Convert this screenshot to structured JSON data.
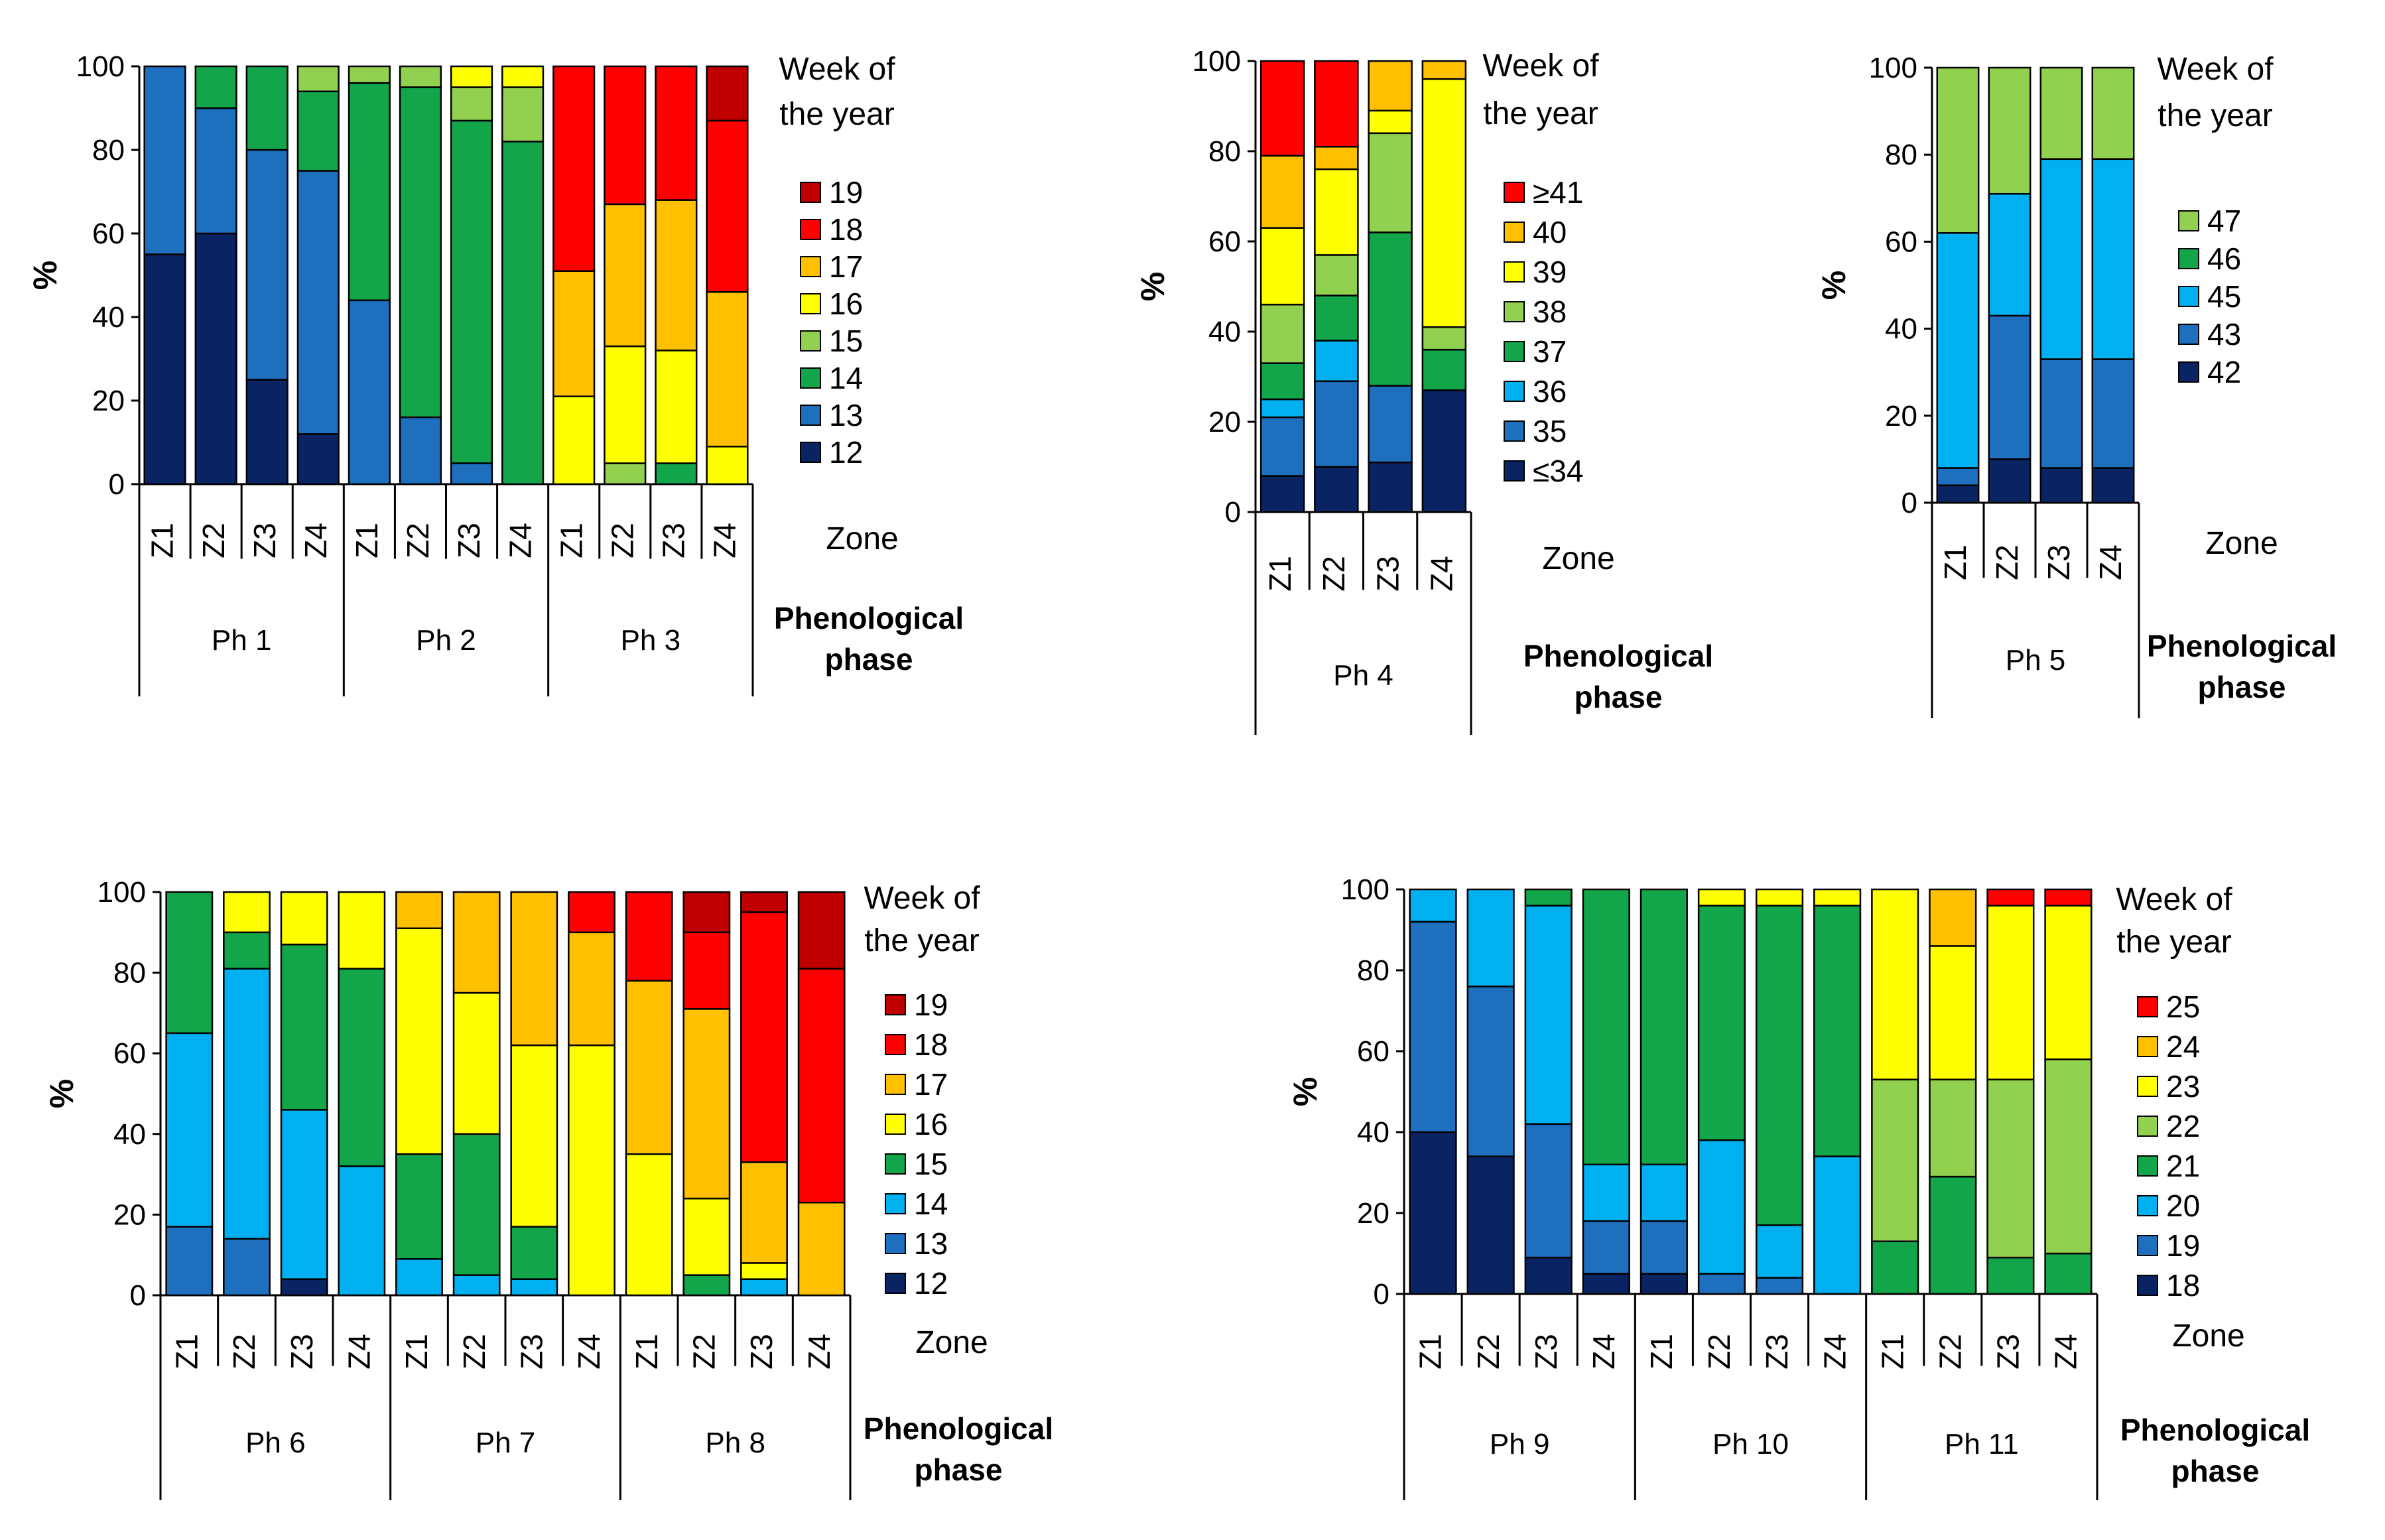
{
  "chart_data": [
    {
      "type": "bar",
      "stacked": true,
      "title": "",
      "ylabel": "%",
      "ylim": [
        0,
        100
      ],
      "yticks": [
        "0",
        "20",
        "40",
        "60",
        "80",
        "100"
      ],
      "xlabel": "Zone",
      "group_axis_label": "Phenological phase",
      "legend_title": "Week of the year",
      "groups": [
        "Ph 1",
        "Ph 2",
        "Ph 3"
      ],
      "categories": [
        "Z1",
        "Z2",
        "Z3",
        "Z4",
        "Z1",
        "Z2",
        "Z3",
        "Z4",
        "Z1",
        "Z2",
        "Z3",
        "Z4"
      ],
      "series": [
        {
          "name": "12",
          "color": "#0a2463",
          "values": [
            55,
            60,
            25,
            12,
            0,
            0,
            0,
            0,
            0,
            0,
            0,
            0
          ]
        },
        {
          "name": "13",
          "color": "#1f6fbf",
          "values": [
            45,
            30,
            55,
            63,
            44,
            16,
            5,
            0,
            0,
            0,
            0,
            0
          ]
        },
        {
          "name": "14",
          "color": "#12a54a",
          "values": [
            0,
            10,
            20,
            19,
            52,
            79,
            82,
            82,
            0,
            0,
            5,
            0
          ]
        },
        {
          "name": "15",
          "color": "#92d050",
          "values": [
            0,
            0,
            0,
            6,
            4,
            5,
            8,
            13,
            0,
            5,
            0,
            0
          ]
        },
        {
          "name": "16",
          "color": "#ffff00",
          "values": [
            0,
            0,
            0,
            0,
            0,
            0,
            5,
            5,
            21,
            28,
            27,
            9
          ]
        },
        {
          "name": "17",
          "color": "#ffc000",
          "values": [
            0,
            0,
            0,
            0,
            0,
            0,
            0,
            0,
            30,
            34,
            36,
            37
          ]
        },
        {
          "name": "18",
          "color": "#ff0000",
          "values": [
            0,
            0,
            0,
            0,
            0,
            0,
            0,
            0,
            49,
            33,
            32,
            41
          ]
        },
        {
          "name": "19",
          "color": "#c00000",
          "values": [
            0,
            0,
            0,
            0,
            0,
            0,
            0,
            0,
            0,
            0,
            0,
            13
          ]
        }
      ]
    },
    {
      "type": "bar",
      "stacked": true,
      "title": "",
      "ylabel": "%",
      "ylim": [
        0,
        100
      ],
      "yticks": [
        "0",
        "20",
        "40",
        "60",
        "80",
        "100"
      ],
      "xlabel": "Zone",
      "group_axis_label": "Phenological phase",
      "legend_title": "Week of the year",
      "groups": [
        "Ph 4"
      ],
      "categories": [
        "Z1",
        "Z2",
        "Z3",
        "Z4"
      ],
      "series": [
        {
          "name": "≤34",
          "color": "#0a2463",
          "values": [
            8,
            10,
            11,
            27
          ]
        },
        {
          "name": "35",
          "color": "#1f6fbf",
          "values": [
            13,
            19,
            17,
            0
          ]
        },
        {
          "name": "36",
          "color": "#00b0f0",
          "values": [
            4,
            9,
            0,
            0
          ]
        },
        {
          "name": "37",
          "color": "#12a54a",
          "values": [
            8,
            10,
            34,
            9
          ]
        },
        {
          "name": "38",
          "color": "#92d050",
          "values": [
            13,
            9,
            22,
            5
          ]
        },
        {
          "name": "39",
          "color": "#ffff00",
          "values": [
            17,
            19,
            5,
            55
          ]
        },
        {
          "name": "40",
          "color": "#ffc000",
          "values": [
            16,
            5,
            11,
            4
          ]
        },
        {
          "name": "≥41",
          "color": "#ff0000",
          "values": [
            21,
            19,
            0,
            0
          ]
        }
      ]
    },
    {
      "type": "bar",
      "stacked": true,
      "title": "",
      "ylabel": "%",
      "ylim": [
        0,
        100
      ],
      "yticks": [
        "0",
        "20",
        "40",
        "60",
        "80",
        "100"
      ],
      "xlabel": "Zone",
      "group_axis_label": "Phenological phase",
      "legend_title": "Week of the year",
      "groups": [
        "Ph 5"
      ],
      "categories": [
        "Z1",
        "Z2",
        "Z3",
        "Z4"
      ],
      "series": [
        {
          "name": "42",
          "color": "#0a2463",
          "values": [
            4,
            10,
            8,
            8
          ]
        },
        {
          "name": "43",
          "color": "#1f6fbf",
          "values": [
            4,
            33,
            25,
            25
          ]
        },
        {
          "name": "45",
          "color": "#00b0f0",
          "values": [
            54,
            28,
            46,
            46
          ]
        },
        {
          "name": "46",
          "color": "#12a54a",
          "values": [
            0,
            0,
            0,
            0
          ]
        },
        {
          "name": "47",
          "color": "#92d050",
          "values": [
            38,
            29,
            21,
            21
          ]
        }
      ]
    },
    {
      "type": "bar",
      "stacked": true,
      "title": "",
      "ylabel": "%",
      "ylim": [
        0,
        100
      ],
      "yticks": [
        "0",
        "20",
        "40",
        "60",
        "80",
        "100"
      ],
      "xlabel": "Zone",
      "group_axis_label": "Phenological phase",
      "legend_title": "Week of the year",
      "groups": [
        "Ph 6",
        "Ph 7",
        "Ph 8"
      ],
      "categories": [
        "Z1",
        "Z2",
        "Z3",
        "Z4",
        "Z1",
        "Z2",
        "Z3",
        "Z4",
        "Z1",
        "Z2",
        "Z3",
        "Z4"
      ],
      "series": [
        {
          "name": "12",
          "color": "#0a2463",
          "values": [
            0,
            0,
            4,
            0,
            0,
            0,
            0,
            0,
            0,
            0,
            0,
            0
          ]
        },
        {
          "name": "13",
          "color": "#1f6fbf",
          "values": [
            17,
            14,
            0,
            0,
            0,
            0,
            0,
            0,
            0,
            0,
            0,
            0
          ]
        },
        {
          "name": "14",
          "color": "#00b0f0",
          "values": [
            48,
            67,
            42,
            32,
            9,
            5,
            4,
            0,
            0,
            0,
            4,
            0
          ]
        },
        {
          "name": "15",
          "color": "#12a54a",
          "values": [
            35,
            9,
            41,
            49,
            26,
            35,
            13,
            0,
            0,
            5,
            0,
            0
          ]
        },
        {
          "name": "16",
          "color": "#ffff00",
          "values": [
            0,
            10,
            13,
            19,
            56,
            35,
            45,
            62,
            35,
            19,
            4,
            0
          ]
        },
        {
          "name": "17",
          "color": "#ffc000",
          "values": [
            0,
            0,
            0,
            0,
            9,
            25,
            38,
            28,
            43,
            47,
            25,
            23
          ]
        },
        {
          "name": "18",
          "color": "#ff0000",
          "values": [
            0,
            0,
            0,
            0,
            0,
            0,
            0,
            10,
            22,
            19,
            62,
            58
          ]
        },
        {
          "name": "19",
          "color": "#c00000",
          "values": [
            0,
            0,
            0,
            0,
            0,
            0,
            0,
            0,
            0,
            10,
            5,
            19
          ]
        }
      ]
    },
    {
      "type": "bar",
      "stacked": true,
      "title": "",
      "ylabel": "%",
      "ylim": [
        0,
        100
      ],
      "yticks": [
        "0",
        "20",
        "40",
        "60",
        "80",
        "100"
      ],
      "xlabel": "Zone",
      "group_axis_label": "Phenological phase",
      "legend_title": "Week of the year",
      "groups": [
        "Ph 9",
        "Ph 10",
        "Ph 11"
      ],
      "categories": [
        "Z1",
        "Z2",
        "Z3",
        "Z4",
        "Z1",
        "Z2",
        "Z3",
        "Z4",
        "Z1",
        "Z2",
        "Z3",
        "Z4"
      ],
      "series": [
        {
          "name": "18",
          "color": "#0a2463",
          "values": [
            40,
            34,
            9,
            5,
            5,
            0,
            0,
            0,
            0,
            0,
            0,
            0
          ]
        },
        {
          "name": "19",
          "color": "#1f6fbf",
          "values": [
            52,
            42,
            33,
            13,
            13,
            5,
            4,
            0,
            0,
            0,
            0,
            0
          ]
        },
        {
          "name": "20",
          "color": "#00b0f0",
          "values": [
            8,
            24,
            54,
            14,
            14,
            33,
            13,
            34,
            0,
            0,
            0,
            0
          ]
        },
        {
          "name": "21",
          "color": "#12a54a",
          "values": [
            0,
            0,
            4,
            68,
            68,
            58,
            79,
            62,
            13,
            29,
            9,
            10
          ]
        },
        {
          "name": "22",
          "color": "#92d050",
          "values": [
            0,
            0,
            0,
            0,
            0,
            0,
            0,
            0,
            40,
            24,
            44,
            48
          ]
        },
        {
          "name": "23",
          "color": "#ffff00",
          "values": [
            0,
            0,
            0,
            0,
            0,
            4,
            4,
            4,
            47,
            33,
            43,
            38
          ]
        },
        {
          "name": "24",
          "color": "#ffc000",
          "values": [
            0,
            0,
            0,
            0,
            0,
            0,
            0,
            0,
            0,
            14,
            0,
            0
          ]
        },
        {
          "name": "25",
          "color": "#ff0000",
          "values": [
            0,
            0,
            0,
            0,
            0,
            0,
            0,
            0,
            0,
            0,
            4,
            4
          ]
        }
      ]
    }
  ]
}
